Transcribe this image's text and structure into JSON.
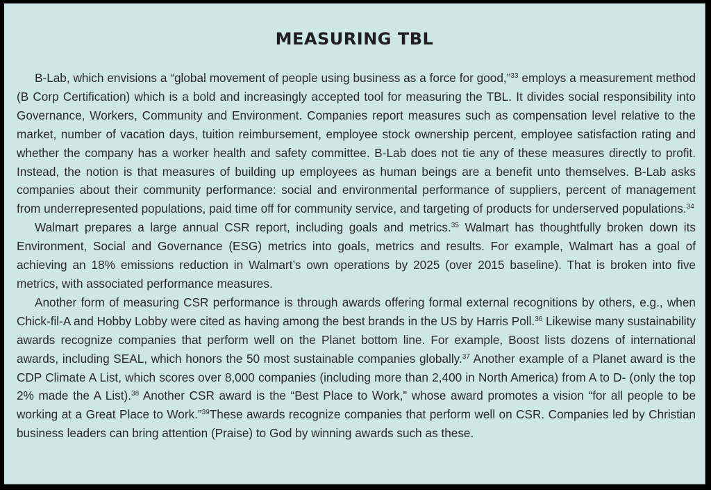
{
  "title": "MEASURING TBL",
  "paragraphs": [
    {
      "segments": [
        {
          "text": "B-Lab, which envisions a “global movement of people using business as a force for good,”"
        },
        {
          "sup": "33"
        },
        {
          "text": " employs a measurement method (B Corp Certification) which is a bold and increasingly accepted tool for measuring the TBL. It divides social responsibility into Governance, Workers, Community and Environment. Companies report measures such as compensation level relative to the market, number of vacation days, tuition reimbursement, employee stock ownership percent, employee satisfaction rating and whether the company has a worker health and safety committee. B-Lab does not tie any of these measures directly to profit. Instead, the notion is that measures of building up employees as human beings are a benefit unto themselves. B-Lab asks companies about their community performance: social and environmental performance of suppliers, percent of management from underrepresented populations, paid time off for community service, and targeting of products for underserved populations."
        },
        {
          "sup": "34"
        }
      ]
    },
    {
      "segments": [
        {
          "text": "Walmart prepares a large annual CSR report, including goals and metrics."
        },
        {
          "sup": "35"
        },
        {
          "text": " Walmart has thoughtfully broken down its Environment, Social and Governance (ESG) metrics into goals, metrics and results. For example, Walmart has a goal of achieving an 18% emissions reduction in Walmart’s own operations by 2025 (over 2015 baseline). That is broken into five metrics, with associated performance measures."
        }
      ]
    },
    {
      "segments": [
        {
          "text": "Another form of measuring CSR performance is through awards offering formal external recognitions by others, e.g., when Chick-fil-A and Hobby Lobby were cited as having among the best brands in the US by Harris Poll."
        },
        {
          "sup": "36"
        },
        {
          "text": " Likewise many sustainability awards recognize companies that perform well on the Planet bottom line. For example, Boost lists dozens of international awards, including SEAL, which honors the 50 most sustainable companies globally."
        },
        {
          "sup": "37"
        },
        {
          "text": " Another example of a Planet award is the CDP Climate A List, which scores over 8,000 companies (including more than 2,400 in North America) from A to D- (only the top 2% made the A List)."
        },
        {
          "sup": "38"
        },
        {
          "text": " Another CSR award is the “Best Place to Work,” whose award promotes a vision “for all people to be working at a Great Place to Work.”"
        },
        {
          "sup": "39"
        },
        {
          "text": "These awards recognize companies that perform well on CSR. Companies led by Christian business leaders can bring attention (Praise) to God by winning awards such as these."
        }
      ]
    }
  ]
}
